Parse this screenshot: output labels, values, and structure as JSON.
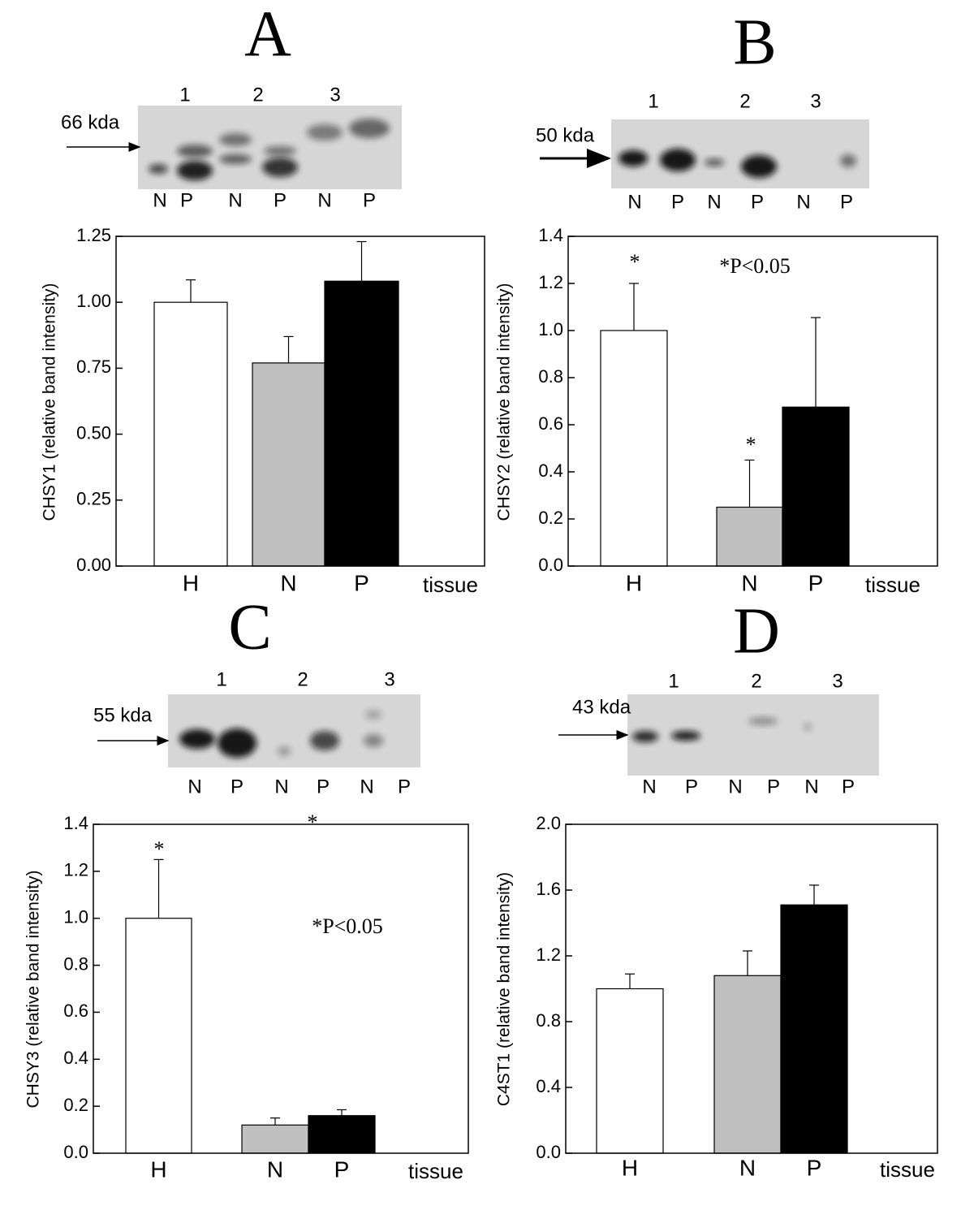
{
  "chart_data": [
    {
      "type": "bar",
      "panel": "A",
      "blot": {
        "marker": "66 kda",
        "lanes": [
          "1",
          "2",
          "3"
        ],
        "samples": [
          "N",
          "P",
          "N",
          "P",
          "N",
          "P"
        ]
      },
      "ylabel": "CHSY1 (relative band intensity)",
      "xlabel": "tissue",
      "categories": [
        "H",
        "N",
        "P"
      ],
      "values": [
        1.0,
        0.77,
        1.08
      ],
      "errors": [
        0.085,
        0.1,
        0.15
      ],
      "colors": [
        "#ffffff",
        "#c0c0c0",
        "#000000"
      ],
      "ylim": [
        0,
        1.25
      ],
      "yticks": [
        {
          "value": 0,
          "label": "0.00"
        },
        0.25,
        {
          "value": 0.5,
          "label": "0.50"
        },
        0.75,
        {
          "value": 1,
          "label": "1.00"
        },
        1.25
      ],
      "annotations": []
    },
    {
      "type": "bar",
      "panel": "B",
      "blot": {
        "marker": "50 kda",
        "lanes": [
          "1",
          "2",
          "3"
        ],
        "samples": [
          "N",
          "P",
          "N",
          "P",
          "N",
          "P"
        ]
      },
      "ylabel": "CHSY2 (relative band intensity)",
      "xlabel": "tissue",
      "categories": [
        "H",
        "N",
        "P"
      ],
      "values": [
        1.0,
        0.25,
        0.675
      ],
      "errors": [
        0.2,
        0.2,
        0.38
      ],
      "colors": [
        "#ffffff",
        "#c0c0c0",
        "#000000"
      ],
      "ylim": [
        0,
        1.4
      ],
      "yticks": [
        {
          "value": 0,
          "label": "0.0"
        },
        0.2,
        0.4,
        0.6,
        0.8,
        {
          "value": 1,
          "label": "1.0"
        },
        1.2,
        1.4
      ],
      "annotations": [
        "*",
        "*",
        "*P<0.05"
      ]
    },
    {
      "type": "bar",
      "panel": "C",
      "blot": {
        "marker": "55 kda",
        "lanes": [
          "1",
          "2",
          "3"
        ],
        "samples": [
          "N",
          "P",
          "N",
          "P",
          "N",
          "P"
        ]
      },
      "ylabel": "CHSY3 (relative band intensity)",
      "xlabel": "tissue",
      "categories": [
        "H",
        "N",
        "P"
      ],
      "values": [
        1.0,
        0.12,
        0.16
      ],
      "errors": [
        0.25,
        0.03,
        0.025
      ],
      "colors": [
        "#ffffff",
        "#c0c0c0",
        "#000000"
      ],
      "ylim": [
        0,
        1.4
      ],
      "yticks": [
        {
          "value": 0,
          "label": "0.0"
        },
        0.2,
        0.4,
        0.6,
        0.8,
        {
          "value": 1,
          "label": "1.0"
        },
        1.2,
        1.4
      ],
      "annotations": [
        "*",
        "*",
        "*P<0.05"
      ]
    },
    {
      "type": "bar",
      "panel": "D",
      "blot": {
        "marker": "43 kda",
        "lanes": [
          "1",
          "2",
          "3"
        ],
        "samples": [
          "N",
          "P",
          "N",
          "P",
          "N",
          "P"
        ]
      },
      "ylabel": "C4ST1 (relative band intensity)",
      "xlabel": "tissue",
      "categories": [
        "H",
        "N",
        "P"
      ],
      "values": [
        1.0,
        1.08,
        1.51
      ],
      "errors": [
        0.09,
        0.15,
        0.12
      ],
      "colors": [
        "#ffffff",
        "#c0c0c0",
        "#000000"
      ],
      "ylim": [
        0,
        2.0
      ],
      "yticks": [
        {
          "value": 0,
          "label": "0.0"
        },
        0.4,
        0.8,
        1.2,
        1.6,
        {
          "value": 2,
          "label": "2.0"
        }
      ],
      "annotations": []
    }
  ]
}
